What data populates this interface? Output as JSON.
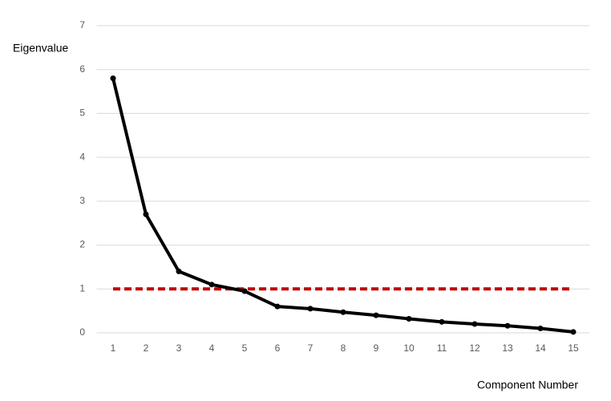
{
  "chart_data": {
    "type": "line",
    "y_label": "Eigenvalue",
    "x_label": "Component Number",
    "categories": [
      "1",
      "2",
      "3",
      "4",
      "5",
      "6",
      "7",
      "8",
      "9",
      "10",
      "11",
      "12",
      "13",
      "14",
      "15"
    ],
    "series": [
      {
        "color": "#000000",
        "dash": false,
        "markers": true,
        "values": [
          5.8,
          2.7,
          1.4,
          1.1,
          0.95,
          0.6,
          0.55,
          0.47,
          0.4,
          0.32,
          0.25,
          0.2,
          0.16,
          0.1,
          0.02
        ]
      },
      {
        "color": "#c00000",
        "dash": true,
        "markers": false,
        "values": [
          1,
          1,
          1,
          1,
          1,
          1,
          1,
          1,
          1,
          1,
          1,
          1,
          1,
          1,
          1
        ]
      }
    ],
    "ylim": [
      0,
      7
    ],
    "yticks": [
      0,
      1,
      2,
      3,
      4,
      5,
      6,
      7
    ],
    "grid": true
  }
}
